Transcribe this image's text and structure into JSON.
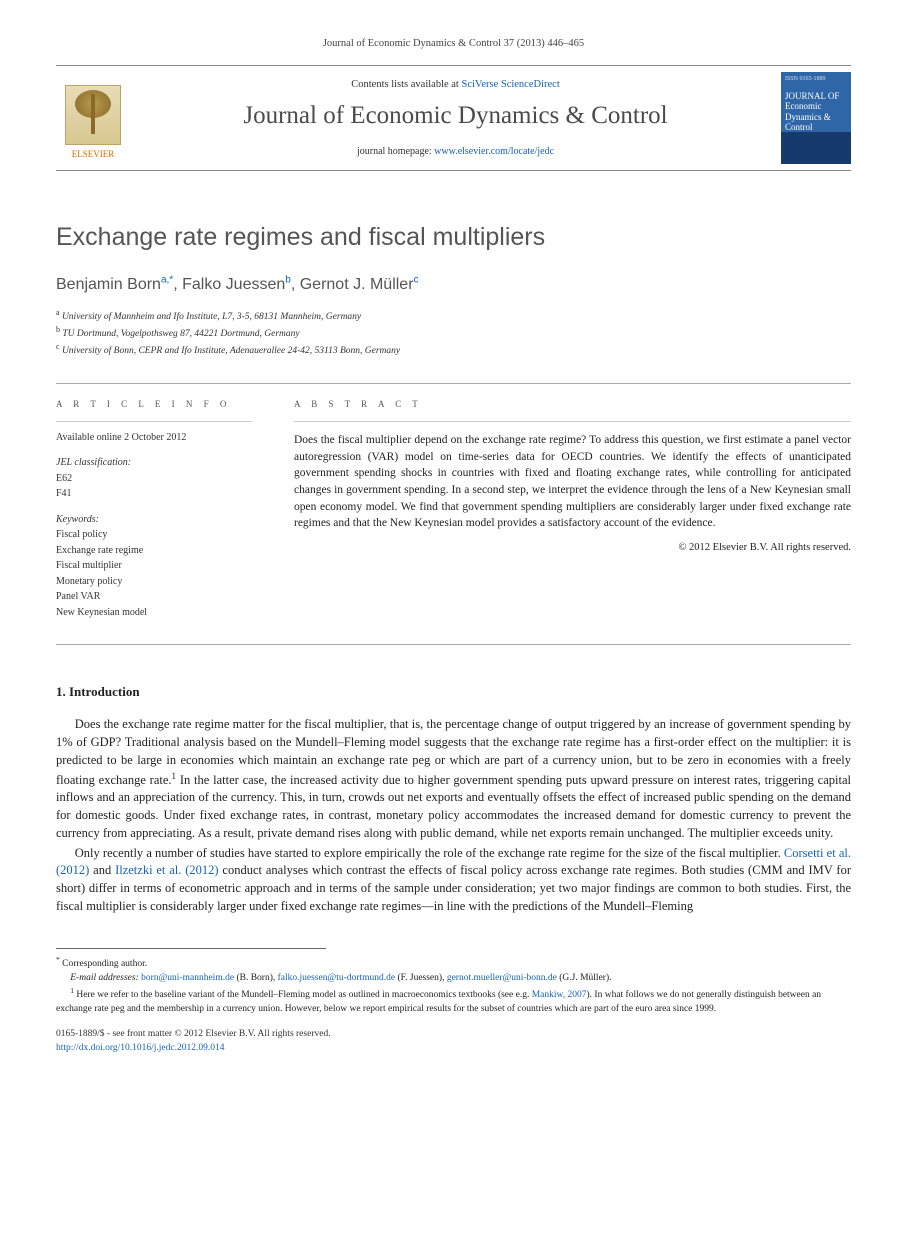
{
  "citation": "Journal of Economic Dynamics & Control 37 (2013) 446–465",
  "masthead": {
    "contents_prefix": "Contents lists available at ",
    "contents_link": "SciVerse ScienceDirect",
    "journal_name": "Journal of Economic Dynamics & Control",
    "homepage_prefix": "journal homepage: ",
    "homepage_url": "www.elsevier.com/locate/jedc",
    "publisher_label": "ELSEVIER",
    "cover": {
      "top": "ISSN 0165-1889",
      "title": "JOURNAL OF Economic Dynamics & Control"
    }
  },
  "article": {
    "title": "Exchange rate regimes and fiscal multipliers",
    "authors_html_parts": {
      "a1_name": "Benjamin Born",
      "a1_sup": "a,",
      "a1_mark": "*",
      "sep1": ", ",
      "a2_name": "Falko Juessen",
      "a2_sup": "b",
      "sep2": ", ",
      "a3_name": "Gernot J. Müller",
      "a3_sup": "c"
    },
    "affiliations": {
      "a": "University of Mannheim and Ifo Institute, L7, 3-5, 68131 Mannheim, Germany",
      "b": "TU Dortmund, Vogelpothsweg 87, 44221 Dortmund, Germany",
      "c": "University of Bonn, CEPR and Ifo Institute, Adenauerallee 24-42, 53113 Bonn, Germany"
    }
  },
  "article_info": {
    "head": "a r t i c l e  i n f o",
    "available": "Available online 2 October 2012",
    "jel_label": "JEL classification:",
    "jel": [
      "E62",
      "F41"
    ],
    "keywords_label": "Keywords:",
    "keywords": [
      "Fiscal policy",
      "Exchange rate regime",
      "Fiscal multiplier",
      "Monetary policy",
      "Panel VAR",
      "New Keynesian model"
    ]
  },
  "abstract": {
    "head": "a b s t r a c t",
    "text": "Does the fiscal multiplier depend on the exchange rate regime? To address this question, we first estimate a panel vector autoregression (VAR) model on time-series data for OECD countries. We identify the effects of unanticipated government spending shocks in countries with fixed and floating exchange rates, while controlling for anticipated changes in government spending. In a second step, we interpret the evidence through the lens of a New Keynesian small open economy model. We find that government spending multipliers are considerably larger under fixed exchange rate regimes and that the New Keynesian model provides a satisfactory account of the evidence.",
    "copyright": "© 2012 Elsevier B.V. All rights reserved."
  },
  "body": {
    "section_number": "1.",
    "section_title": "Introduction",
    "p1_a": "Does the exchange rate regime matter for the fiscal multiplier, that is, the percentage change of output triggered by an increase of government spending by 1% of GDP? Traditional analysis based on the Mundell–Fleming model suggests that the exchange rate regime has a first-order effect on the multiplier: it is predicted to be large in economies which maintain an exchange rate peg or which are part of a currency union, but to be zero in economies with a freely floating exchange rate.",
    "p1_fn": "1",
    "p1_b": " In the latter case, the increased activity due to higher government spending puts upward pressure on interest rates, triggering capital inflows and an appreciation of the currency. This, in turn, crowds out net exports and eventually offsets the effect of increased public spending on the demand for domestic goods. Under fixed exchange rates, in contrast, monetary policy accommodates the increased demand for domestic currency to prevent the currency from appreciating. As a result, private demand rises along with public demand, while net exports remain unchanged. The multiplier exceeds unity.",
    "p2_a": "Only recently a number of studies have started to explore empirically the role of the exchange rate regime for the size of the fiscal multiplier. ",
    "p2_link1": "Corsetti et al. (2012)",
    "p2_mid": " and ",
    "p2_link2": "Ilzetzki et al. (2012)",
    "p2_b": " conduct analyses which contrast the effects of fiscal policy across exchange rate regimes. Both studies (CMM and IMV for short) differ in terms of econometric approach and in terms of the sample under consideration; yet two major findings are common to both studies. First, the fiscal multiplier is considerably larger under fixed exchange rate regimes—in line with the predictions of the Mundell–Fleming"
  },
  "footnotes": {
    "corr_mark": "*",
    "corr_text": " Corresponding author.",
    "email_label": "E-mail addresses: ",
    "emails": [
      {
        "addr": "born@uni-mannheim.de",
        "who": " (B. Born), "
      },
      {
        "addr": "falko.juessen@tu-dortmund.de",
        "who": " (F. Juessen), "
      },
      {
        "addr": "gernot.mueller@uni-bonn.de",
        "who": " (G.J. Müller)."
      }
    ],
    "fn1_mark": "1",
    "fn1_a": " Here we refer to the baseline variant of the Mundell–Fleming model as outlined in macroeconomics textbooks (see e.g. ",
    "fn1_link": "Mankiw, 2007",
    "fn1_b": "). In what follows we do not generally distinguish between an exchange rate peg and the membership in a currency union. However, below we report empirical results for the subset of countries which are part of the euro area since 1999."
  },
  "footer": {
    "issn_line": "0165-1889/$ - see front matter © 2012 Elsevier B.V. All rights reserved.",
    "doi_label": "http://dx.doi.org/",
    "doi": "10.1016/j.jedc.2012.09.014"
  },
  "colors": {
    "link": "#1662b3",
    "heading_gray": "#555555",
    "rule": "#aaaaaa",
    "elsevier_orange": "#e06a00"
  },
  "typography": {
    "body_pt": 12.5,
    "title_pt": 25,
    "authors_pt": 16,
    "abstract_pt": 11.5,
    "footnote_pt": 9.5,
    "journal_name_pt": 25
  }
}
